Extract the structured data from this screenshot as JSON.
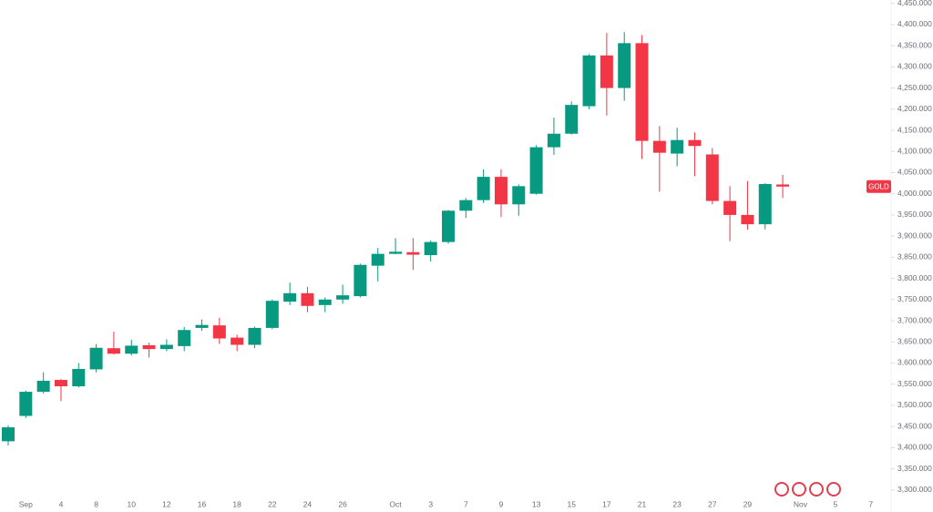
{
  "chart_data": {
    "type": "candlestick",
    "symbol": "GOLD",
    "categories": [
      null,
      "Sep",
      null,
      "4",
      null,
      "8",
      null,
      "10",
      null,
      "12",
      null,
      "16",
      null,
      "18",
      null,
      "22",
      null,
      "24",
      null,
      "26",
      null,
      null,
      "Oct",
      null,
      "3",
      null,
      "7",
      null,
      "9",
      null,
      "13",
      null,
      "15",
      null,
      "17",
      null,
      "21",
      null,
      "23",
      null,
      "27",
      null,
      "29",
      null,
      null,
      "Nov",
      null,
      "5",
      null,
      "7"
    ],
    "open": [
      3415,
      3475,
      3532,
      3560,
      3545,
      3585,
      3635,
      3622,
      3642,
      3633,
      3640,
      3683,
      3689,
      3660,
      3643,
      3683,
      3745,
      3765,
      3737,
      3750,
      3758,
      3830,
      3858,
      3862,
      3855,
      3886,
      3960,
      3985,
      4040,
      3975,
      4000,
      4110,
      4142,
      4207,
      4327,
      4250,
      4356,
      4125,
      4095,
      4127,
      4093,
      3983,
      3950,
      3928,
      4022,
      null,
      null,
      null,
      null,
      null
    ],
    "high": [
      3453,
      3535,
      3578,
      3562,
      3600,
      3645,
      3674,
      3655,
      3648,
      3656,
      3685,
      3703,
      3707,
      3667,
      3686,
      3750,
      3790,
      3780,
      3755,
      3785,
      3835,
      3872,
      3895,
      3895,
      3890,
      3962,
      3990,
      4058,
      4058,
      4022,
      4115,
      4180,
      4218,
      4330,
      4380,
      4382,
      4375,
      4160,
      4156,
      4145,
      4108,
      4018,
      4030,
      4025,
      4045,
      null,
      null,
      null,
      null,
      null
    ],
    "low": [
      3405,
      3470,
      3528,
      3510,
      3542,
      3578,
      3620,
      3618,
      3613,
      3628,
      3628,
      3676,
      3645,
      3628,
      3635,
      3680,
      3737,
      3720,
      3720,
      3740,
      3755,
      3793,
      3857,
      3820,
      3840,
      3882,
      3943,
      3978,
      3945,
      3948,
      3998,
      4092,
      4140,
      4200,
      4185,
      4220,
      4082,
      4005,
      4065,
      4042,
      3975,
      3888,
      3915,
      3916,
      3990,
      null,
      null,
      null,
      null,
      null
    ],
    "close": [
      3448,
      3532,
      3558,
      3545,
      3586,
      3636,
      3622,
      3641,
      3633,
      3643,
      3678,
      3690,
      3658,
      3643,
      3683,
      3747,
      3765,
      3735,
      3750,
      3760,
      3832,
      3858,
      3863,
      3856,
      3886,
      3960,
      3985,
      4040,
      3975,
      4018,
      4110,
      4142,
      4210,
      4327,
      4250,
      4356,
      4125,
      4097,
      4127,
      4113,
      3983,
      3950,
      3928,
      4023,
      4017,
      null,
      null,
      null,
      null,
      null
    ],
    "up_color": "#089981",
    "down_color": "#f23645",
    "ylim": [
      3278,
      4458
    ],
    "yticks": [
      {
        "value": 3300,
        "label": "3,300.000"
      },
      {
        "value": 3350,
        "label": "3,350.000"
      },
      {
        "value": 3400,
        "label": "3,400.000"
      },
      {
        "value": 3450,
        "label": "3,450.000"
      },
      {
        "value": 3500,
        "label": "3,500.000"
      },
      {
        "value": 3550,
        "label": "3,550.000"
      },
      {
        "value": 3600,
        "label": "3,600.000"
      },
      {
        "value": 3650,
        "label": "3,650.000"
      },
      {
        "value": 3700,
        "label": "3,700.000"
      },
      {
        "value": 3750,
        "label": "3,750.000"
      },
      {
        "value": 3800,
        "label": "3,800.000"
      },
      {
        "value": 3850,
        "label": "3,850.000"
      },
      {
        "value": 3900,
        "label": "3,900.000"
      },
      {
        "value": 3950,
        "label": "3,950.000"
      },
      {
        "value": 4000,
        "label": "4,000.000"
      },
      {
        "value": 4050,
        "label": "4,050.000"
      },
      {
        "value": 4100,
        "label": "4,100.000"
      },
      {
        "value": 4150,
        "label": "4,150.000"
      },
      {
        "value": 4200,
        "label": "4,200.000"
      },
      {
        "value": 4250,
        "label": "4,250.000"
      },
      {
        "value": 4300,
        "label": "4,300.000"
      },
      {
        "value": 4350,
        "label": "4,350.000"
      },
      {
        "value": 4400,
        "label": "4,400.000"
      },
      {
        "value": 4450,
        "label": "4,450.000"
      }
    ],
    "grid": false
  }
}
